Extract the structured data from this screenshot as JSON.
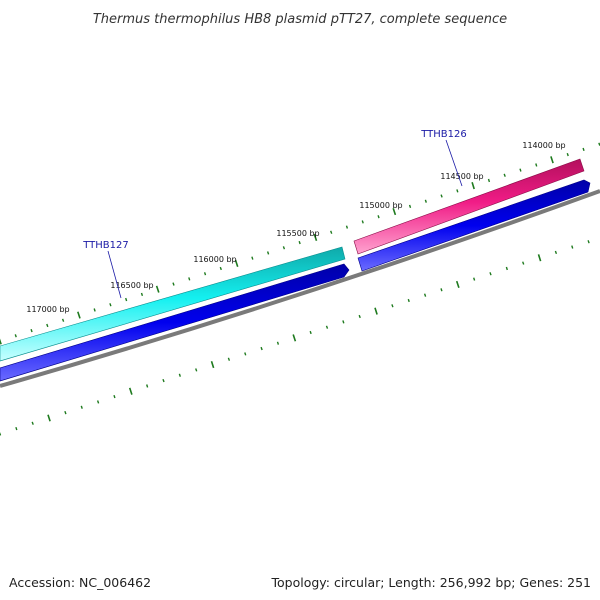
{
  "title": "Thermus thermophilus HB8 plasmid pTT27, complete sequence",
  "genes": [
    {
      "id": "TTHB126",
      "label": "TTHB126",
      "color": "#e8137a",
      "highlight": "#ff8fc4"
    },
    {
      "id": "TTHB127",
      "label": "TTHB127",
      "color": "#11c9c9",
      "highlight": "#b8ffff"
    }
  ],
  "cds_track": {
    "color": "#0000dd"
  },
  "backbone": {
    "color": "#808080"
  },
  "tick_color": "#1e7a1e",
  "tick_labels": [
    "114000 bp",
    "114500 bp",
    "115000 bp",
    "115500 bp",
    "116000 bp",
    "116500 bp",
    "117000 bp"
  ],
  "footer": {
    "accession": "Accession: NC_006462",
    "summary": "Topology: circular; Length: 256,992 bp; Genes: 251"
  }
}
